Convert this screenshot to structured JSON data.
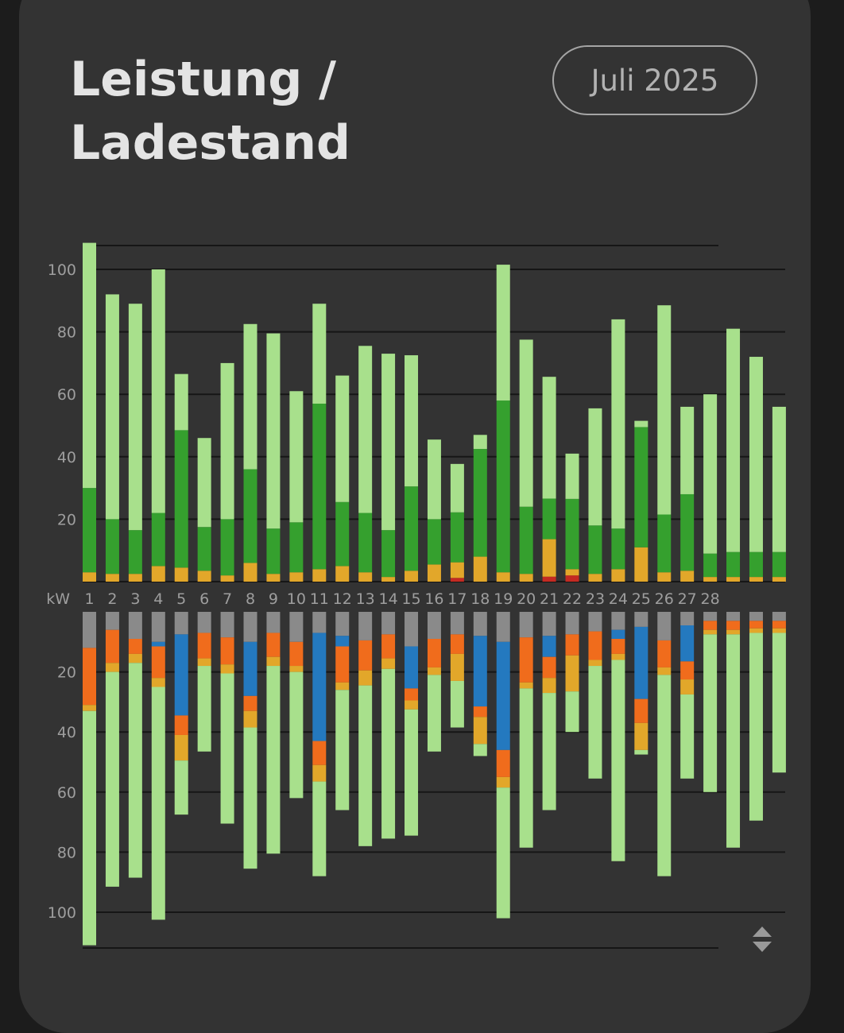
{
  "header": {
    "title_line1": "Leistung /",
    "title_line2": "Ladestand",
    "month_label": "Juli 2025"
  },
  "icons": {
    "sort": "sort-up-down-icon"
  },
  "colors": {
    "card": "#333333",
    "gray": "#8a8a8a",
    "light_green": "#a8e08c",
    "dark_green": "#35a02e",
    "yellow": "#e2a72a",
    "orange": "#f06c1c",
    "blue": "#2479bf",
    "red": "#c42a22"
  },
  "chart_data": {
    "type": "bar",
    "unit_label": "kW",
    "categories": [
      "1",
      "2",
      "3",
      "4",
      "5",
      "6",
      "7",
      "8",
      "9",
      "10",
      "11",
      "12",
      "13",
      "14",
      "15",
      "16",
      "17",
      "18",
      "19",
      "20",
      "21",
      "22",
      "23",
      "24",
      "25",
      "26",
      "27",
      "28",
      "",
      "",
      ""
    ],
    "top": {
      "yticks": [
        20,
        40,
        60,
        80,
        100
      ],
      "ylim": [
        0,
        108
      ],
      "series": [
        {
          "color": "red",
          "values": [
            0,
            0,
            0,
            0,
            0,
            0,
            0,
            0,
            0,
            0,
            0,
            0,
            0,
            0,
            0,
            0,
            1.2,
            0,
            0,
            0,
            1.6,
            2,
            0,
            0,
            0,
            0,
            0,
            0,
            0,
            0,
            0
          ]
        },
        {
          "color": "yellow",
          "values": [
            3,
            2.5,
            2.5,
            5,
            4.5,
            3.5,
            2,
            6,
            2.5,
            3,
            4,
            5,
            3,
            1.5,
            3.5,
            5.5,
            5,
            8,
            3,
            2.5,
            12,
            2,
            2.5,
            4,
            11,
            3,
            3.5,
            1.5,
            1.5,
            1.5,
            1.5
          ]
        },
        {
          "color": "dark_green",
          "values": [
            27,
            17.5,
            14,
            17,
            44,
            14,
            18,
            30,
            14.5,
            16,
            53,
            20.5,
            19,
            15,
            27,
            14.5,
            16,
            34.5,
            55,
            21.5,
            13,
            22.5,
            15.5,
            13,
            38.5,
            18.5,
            24.5,
            7.5,
            8,
            8,
            8
          ]
        },
        {
          "color": "light_green",
          "values": [
            78.5,
            72,
            72.5,
            78,
            18,
            28.5,
            50,
            46.5,
            62.5,
            42,
            32,
            40.5,
            53.5,
            56.5,
            42,
            25.5,
            15.5,
            4.5,
            43.5,
            53.5,
            39,
            14.5,
            37.5,
            67,
            2,
            67,
            28,
            51,
            71.5,
            62.5,
            46.5
          ]
        }
      ]
    },
    "bottom": {
      "yticks": [
        20,
        40,
        60,
        80,
        100
      ],
      "ylim": [
        0,
        112
      ],
      "series": [
        {
          "color": "gray",
          "values": [
            12,
            6,
            9,
            10,
            7.5,
            7,
            8.5,
            10,
            7,
            10,
            7,
            8,
            9.5,
            7.5,
            11.5,
            9,
            7.5,
            8,
            10,
            8.5,
            8,
            7.5,
            6.5,
            6,
            5,
            9.5,
            4.5,
            3,
            3,
            3,
            3
          ]
        },
        {
          "color": "blue",
          "values": [
            0,
            0,
            0,
            1.5,
            27,
            0,
            0,
            18,
            0,
            0,
            36,
            3.5,
            0,
            0,
            14,
            0,
            0,
            23.5,
            36,
            0,
            7,
            0,
            0,
            3,
            24,
            0,
            12,
            0,
            0,
            0,
            0
          ]
        },
        {
          "color": "orange",
          "values": [
            19,
            11,
            5,
            10.5,
            6.5,
            8.5,
            9,
            5,
            8,
            8,
            8,
            12,
            10,
            8,
            4,
            9.5,
            6.5,
            3.5,
            9,
            15,
            7,
            7,
            9.5,
            5,
            8,
            9,
            6,
            3,
            3,
            2.5,
            2.5
          ]
        },
        {
          "color": "yellow",
          "values": [
            2,
            3,
            3,
            3,
            8.5,
            2.5,
            3,
            5.5,
            3,
            2,
            5.5,
            2.5,
            5,
            3.5,
            3,
            2.5,
            9,
            9,
            3.5,
            2,
            5,
            12,
            2,
            2,
            9,
            2.5,
            5,
            1.5,
            1.5,
            1.5,
            1.5
          ]
        },
        {
          "color": "light_green",
          "values": [
            78,
            71.5,
            71.5,
            77.5,
            18,
            28.5,
            50,
            47,
            62.5,
            42,
            31.5,
            40,
            53.5,
            56.5,
            42,
            25.5,
            15.5,
            4,
            43.5,
            53,
            39,
            13.5,
            37.5,
            67,
            1.5,
            67,
            28,
            52.5,
            71,
            62.5,
            46.5
          ]
        }
      ]
    }
  }
}
